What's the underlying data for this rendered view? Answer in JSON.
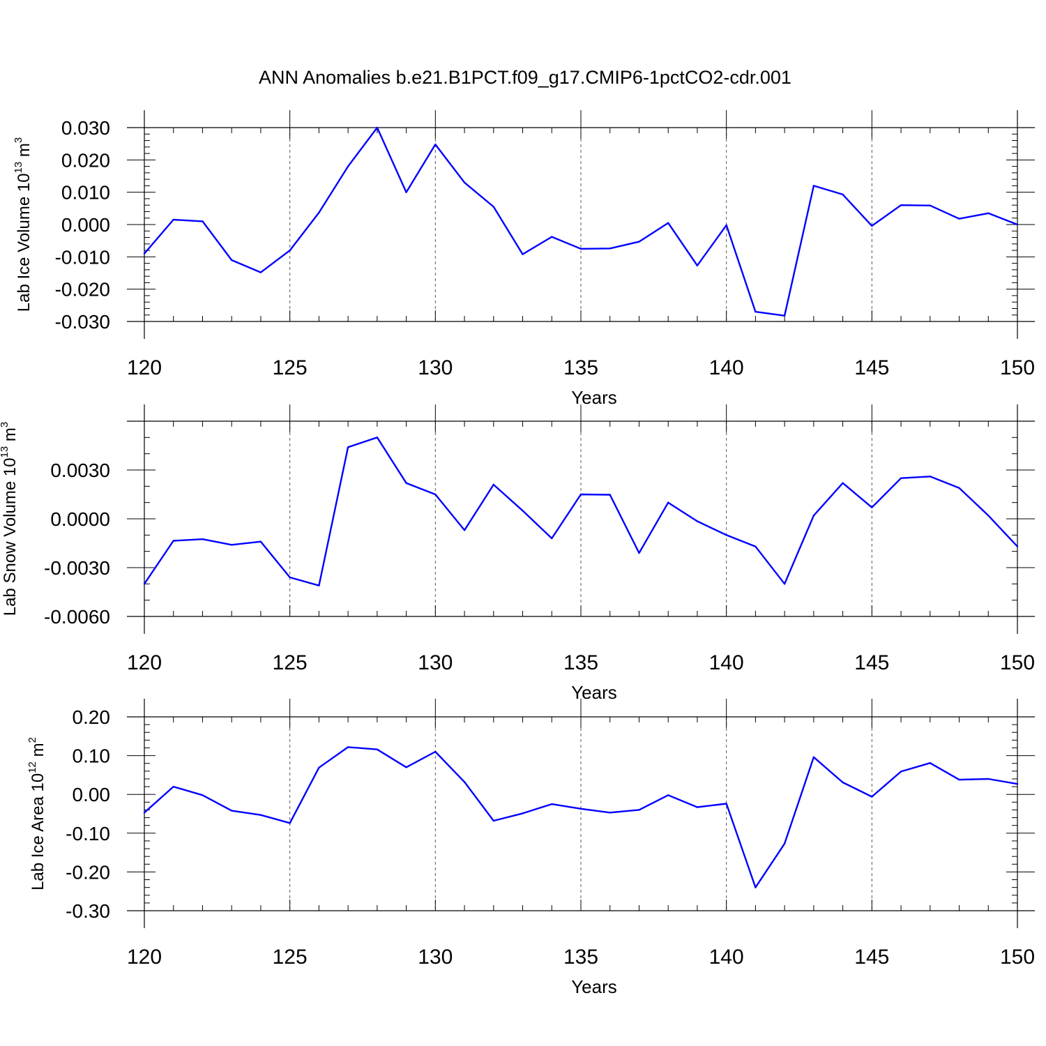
{
  "figure": {
    "title": "ANN Anomalies b.e21.B1PCT.f09_g17.CMIP6-1pctCO2-cdr.001",
    "line_color": "#0000ff",
    "axis_color": "#000000",
    "grid_color": "#555555"
  },
  "chart_data": [
    {
      "type": "line",
      "ylabel": {
        "text": "Lab Ice Volume 10",
        "sup": "13",
        "unit": " m",
        "unit_sup": "3"
      },
      "xlabel": "Years",
      "xlim": [
        120,
        150
      ],
      "ylim": [
        -0.03,
        0.03
      ],
      "x_ticks": [
        120,
        125,
        130,
        135,
        140,
        145,
        150
      ],
      "x_tick_labels": [
        "120",
        "125",
        "130",
        "135",
        "140",
        "145",
        "150"
      ],
      "y_ticks": [
        -0.03,
        -0.02,
        -0.01,
        0.0,
        0.01,
        0.02,
        0.03
      ],
      "y_tick_labels": [
        "-0.030",
        "-0.020",
        "-0.010",
        "0.000",
        "0.010",
        "0.020",
        "0.030"
      ],
      "y_minor_step": 0.002,
      "x_minor_step": 1,
      "grid": "vertical dashed at major x ticks",
      "x": [
        120,
        121,
        122,
        123,
        124,
        125,
        126,
        127,
        128,
        129,
        130,
        131,
        132,
        133,
        134,
        135,
        136,
        137,
        138,
        139,
        140,
        141,
        142,
        143,
        144,
        145,
        146,
        147,
        148,
        149,
        150
      ],
      "y": [
        -0.009,
        0.0015,
        0.001,
        -0.011,
        -0.0148,
        -0.008,
        0.0037,
        0.018,
        0.03,
        0.01,
        0.0248,
        0.013,
        0.0055,
        -0.0092,
        -0.0038,
        -0.0075,
        -0.0074,
        -0.0053,
        0.0005,
        -0.0127,
        -0.0002,
        -0.027,
        -0.0282,
        0.012,
        0.0093,
        -0.0004,
        0.006,
        0.0059,
        0.0018,
        0.0035,
        0.0
      ]
    },
    {
      "type": "line",
      "ylabel": {
        "text": "Lab Snow Volume 10",
        "sup": "13",
        "unit": " m",
        "unit_sup": "3"
      },
      "xlabel": "Years",
      "xlim": [
        120,
        150
      ],
      "ylim": [
        -0.006,
        0.006
      ],
      "x_ticks": [
        120,
        125,
        130,
        135,
        140,
        145,
        150
      ],
      "x_tick_labels": [
        "120",
        "125",
        "130",
        "135",
        "140",
        "145",
        "150"
      ],
      "y_ticks": [
        -0.006,
        -0.003,
        0.0,
        0.003
      ],
      "y_tick_labels": [
        "-0.0060",
        "-0.0030",
        "0.0000",
        "0.0030"
      ],
      "y_minor_step": 0.001,
      "x_minor_step": 1,
      "grid": "vertical dashed at major x ticks",
      "x": [
        120,
        121,
        122,
        123,
        124,
        125,
        126,
        127,
        128,
        129,
        130,
        131,
        132,
        133,
        134,
        135,
        136,
        137,
        138,
        139,
        140,
        141,
        142,
        143,
        144,
        145,
        146,
        147,
        148,
        149,
        150
      ],
      "y": [
        -0.004,
        -0.00135,
        -0.00125,
        -0.0016,
        -0.0014,
        -0.0036,
        -0.0041,
        0.0044,
        0.005,
        0.0022,
        0.0015,
        -0.0007,
        0.0021,
        0.0005,
        -0.0012,
        0.0015,
        0.00148,
        -0.0021,
        0.001,
        -0.00015,
        -0.001,
        -0.0017,
        -0.004,
        0.0002,
        0.0022,
        0.0007,
        0.0025,
        0.0026,
        0.0019,
        0.0002,
        -0.0017
      ]
    },
    {
      "type": "line",
      "ylabel": {
        "text": "Lab Ice Area 10",
        "sup": "12",
        "unit": " m",
        "unit_sup": "2"
      },
      "xlabel": "Years",
      "xlim": [
        120,
        150
      ],
      "ylim": [
        -0.3,
        0.2
      ],
      "x_ticks": [
        120,
        125,
        130,
        135,
        140,
        145,
        150
      ],
      "x_tick_labels": [
        "120",
        "125",
        "130",
        "135",
        "140",
        "145",
        "150"
      ],
      "y_ticks": [
        -0.3,
        -0.2,
        -0.1,
        0.0,
        0.1,
        0.2
      ],
      "y_tick_labels": [
        "-0.30",
        "-0.20",
        "-0.10",
        "0.00",
        "0.10",
        "0.20"
      ],
      "y_minor_step": 0.02,
      "x_minor_step": 1,
      "grid": "vertical dashed at major x ticks",
      "x": [
        120,
        121,
        122,
        123,
        124,
        125,
        126,
        127,
        128,
        129,
        130,
        131,
        132,
        133,
        134,
        135,
        136,
        137,
        138,
        139,
        140,
        141,
        142,
        143,
        144,
        145,
        146,
        147,
        148,
        149,
        150
      ],
      "y": [
        -0.047,
        0.02,
        -0.002,
        -0.042,
        -0.053,
        -0.074,
        0.069,
        0.122,
        0.116,
        0.07,
        0.11,
        0.032,
        -0.068,
        -0.049,
        -0.025,
        -0.037,
        -0.047,
        -0.04,
        -0.002,
        -0.033,
        -0.024,
        -0.24,
        -0.127,
        0.096,
        0.031,
        -0.006,
        0.059,
        0.081,
        0.038,
        0.04,
        0.027
      ]
    }
  ]
}
